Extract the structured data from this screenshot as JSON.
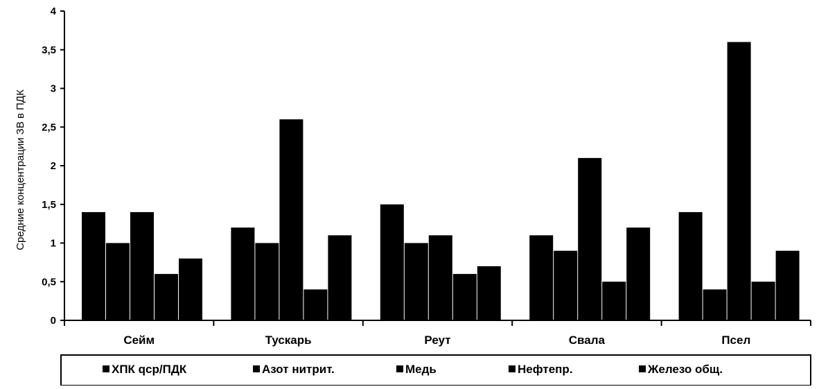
{
  "chart_data": {
    "type": "bar",
    "title": "",
    "xlabel": "",
    "ylabel": "Средние концентрации ЗВ в ПДК",
    "ylim": [
      0,
      4
    ],
    "yticks": [
      "0",
      "0,5",
      "1",
      "1,5",
      "2",
      "2,5",
      "3",
      "3,5",
      "4"
    ],
    "grid": false,
    "legend_position": "bottom",
    "categories": [
      "Сейм",
      "Тускарь",
      "Реут",
      "Свала",
      "Псел"
    ],
    "series": [
      {
        "name": "ХПК qср/ПДК",
        "color": "#000000",
        "values": [
          1.4,
          1.2,
          1.5,
          1.1,
          1.4
        ]
      },
      {
        "name": "Азот нитрит.",
        "color": "#000000",
        "values": [
          1.0,
          1.0,
          1.0,
          0.9,
          0.4
        ]
      },
      {
        "name": "Медь",
        "color": "#000000",
        "values": [
          1.4,
          2.6,
          1.1,
          2.1,
          3.6
        ]
      },
      {
        "name": "Нефтепр.",
        "color": "#000000",
        "values": [
          0.6,
          0.4,
          0.6,
          0.5,
          0.5
        ]
      },
      {
        "name": "Железо общ.",
        "color": "#000000",
        "values": [
          0.8,
          1.1,
          0.7,
          1.2,
          0.9
        ]
      }
    ]
  }
}
